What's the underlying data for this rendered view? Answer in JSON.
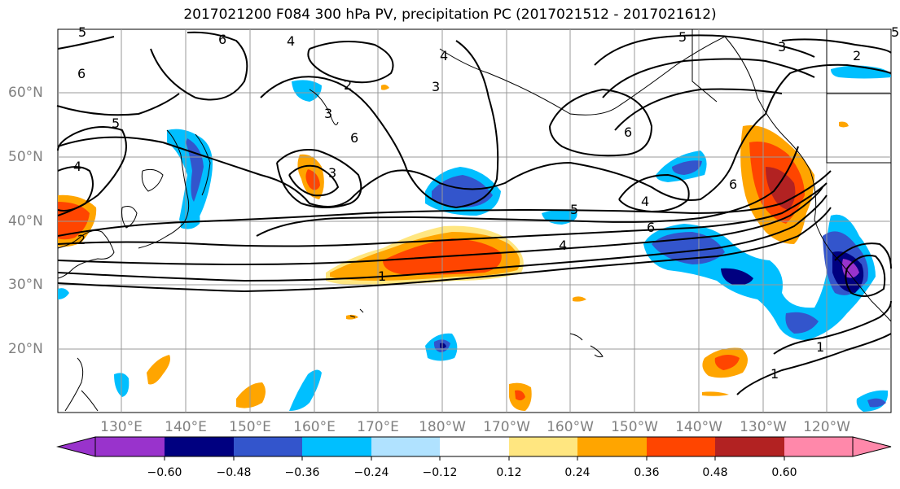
{
  "title": "2017021200 F084 300 hPa PV, precipitation PC (2017021512 - 2017021612)",
  "map": {
    "lat_labels": [
      "60°N",
      "50°N",
      "40°N",
      "30°N",
      "20°N"
    ],
    "lon_labels": [
      "130°E",
      "140°E",
      "150°E",
      "160°E",
      "170°E",
      "180°W",
      "170°W",
      "160°W",
      "150°W",
      "140°W",
      "130°W",
      "120°W"
    ],
    "contour_labels": [
      "5",
      "6",
      "4",
      "5",
      "3",
      "2",
      "6",
      "4",
      "3",
      "2",
      "6",
      "5",
      "4",
      "3",
      "6",
      "5",
      "4",
      "1",
      "4",
      "6",
      "6",
      "3",
      "2",
      "1",
      "1",
      "5"
    ]
  },
  "colorbar": {
    "ticks": [
      "−0.60",
      "−0.48",
      "−0.36",
      "−0.24",
      "−0.12",
      "0.12",
      "0.24",
      "0.36",
      "0.48",
      "0.60"
    ],
    "colors": [
      "#9933cc",
      "#000080",
      "#3355cc",
      "#00bfff",
      "#b0e2ff",
      "#ffffff",
      "#ffe680",
      "#ffa500",
      "#ff4500",
      "#b22222",
      "#ff88aa"
    ]
  }
}
